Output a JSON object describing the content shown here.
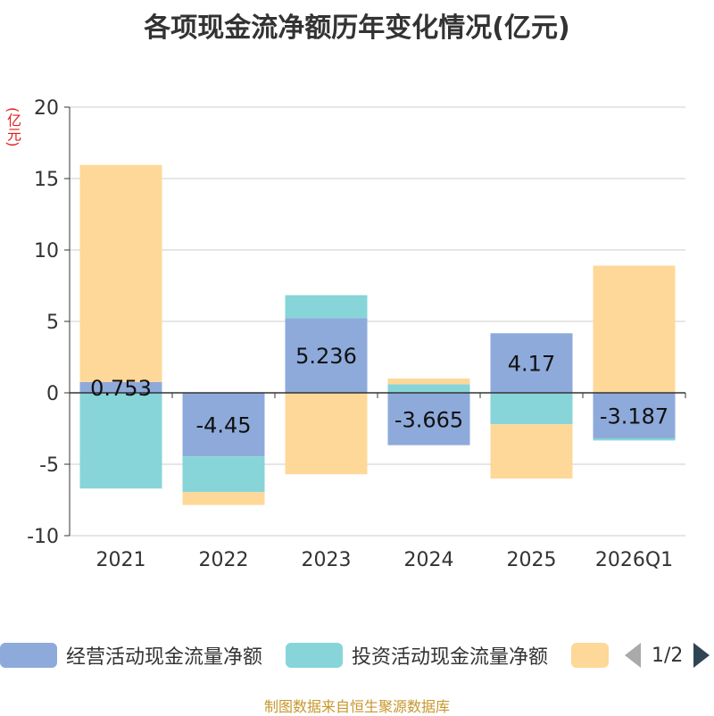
{
  "title": "各项现金流净额历年变化情况(亿元)",
  "unit": "(亿元)",
  "source": "制图数据来自恒生聚源数据库",
  "legend": {
    "items": [
      {
        "label": "经营活动现金流量净额",
        "color": "#8eaadb"
      },
      {
        "label": "投资活动现金流量净额",
        "color": "#87d5d8"
      },
      {
        "label": "",
        "color": "#fed898"
      }
    ],
    "page": "1/2"
  },
  "chart_data": {
    "type": "bar",
    "stacked": true,
    "categories": [
      "2021",
      "2022",
      "2023",
      "2024",
      "2025",
      "2026Q1"
    ],
    "series": [
      {
        "name": "经营活动现金流量净额",
        "color": "#8eaadb",
        "values": [
          0.753,
          -4.45,
          5.236,
          -3.665,
          4.17,
          -3.187
        ]
      },
      {
        "name": "投资活动现金流量净额",
        "color": "#87d5d8",
        "values": [
          -6.7,
          -2.5,
          1.6,
          0.6,
          -2.2,
          -0.15
        ]
      },
      {
        "name": "",
        "color": "#fed898",
        "values": [
          15.2,
          -0.9,
          -5.7,
          0.4,
          -3.8,
          8.9
        ]
      }
    ],
    "data_labels": [
      "0.753",
      "-4.45",
      "5.236",
      "-3.665",
      "4.17",
      "-3.187"
    ],
    "ylim": [
      -10,
      20
    ],
    "yticks": [
      20,
      15,
      10,
      5,
      0,
      -5,
      -10
    ],
    "ylabel": "(亿元)",
    "grid": true
  }
}
